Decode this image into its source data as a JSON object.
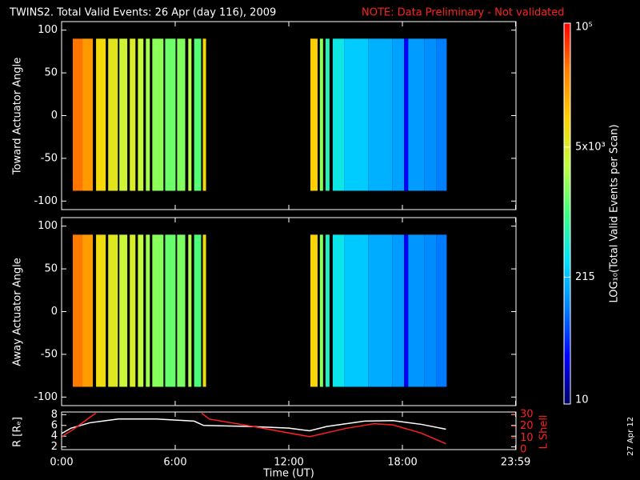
{
  "title": "TWINS2. Total Valid Events: 26 Apr (day 116), 2009",
  "note": "NOTE: Data Preliminary - Not validated",
  "stamp": "27 Apr 12",
  "colorbar": {
    "label": "LOG₁₀(Total Valid Events per Scan)",
    "log": true,
    "lim": [
      10,
      100000
    ],
    "ticks": [
      10,
      215,
      {
        "value": 5000,
        "label": "5x10³"
      },
      {
        "value": 100000,
        "label": "10⁵"
      }
    ],
    "colormap": [
      "#000066",
      "#0000ff",
      "#0080ff",
      "#00e0ff",
      "#40ff80",
      "#c0ff40",
      "#ffd000",
      "#ff8000",
      "#ff0000"
    ]
  },
  "chart_data": [
    {
      "type": "heatmap",
      "ylabel": "Toward Actuator Angle",
      "ylim": [
        -110,
        110
      ],
      "yticks": [
        -100,
        -50,
        0,
        50,
        100
      ],
      "y_range": [
        -88,
        90
      ],
      "x_start": [
        0.59,
        1.1,
        1.82,
        2.46,
        3.05,
        3.6,
        4.03,
        4.45,
        4.79,
        5.47,
        6.1,
        6.69,
        7.0,
        7.46,
        13.14,
        13.64,
        13.94,
        14.32,
        14.92,
        16.19,
        17.46,
        18.09,
        18.31,
        19.15,
        19.79
      ],
      "x_end": [
        1.1,
        1.65,
        2.33,
        2.97,
        3.47,
        3.9,
        4.32,
        4.66,
        5.38,
        6.02,
        6.53,
        6.86,
        7.37,
        7.63,
        13.52,
        13.81,
        14.15,
        14.92,
        16.19,
        17.46,
        18.09,
        18.31,
        19.15,
        19.79,
        20.34
      ],
      "values": [
        35000,
        22000,
        8000,
        6000,
        4000,
        5000,
        3500,
        2500,
        2000,
        1500,
        1800,
        3000,
        1200,
        8000,
        10000,
        2000,
        600,
        400,
        250,
        180,
        150,
        30,
        140,
        120,
        100
      ]
    },
    {
      "type": "heatmap",
      "ylabel": "Away Actuator Angle",
      "ylim": [
        -110,
        110
      ],
      "yticks": [
        -100,
        -50,
        0,
        50,
        100
      ],
      "y_range": [
        -88,
        90
      ],
      "x_start": [
        0.59,
        1.1,
        1.82,
        2.46,
        3.05,
        3.6,
        4.03,
        4.45,
        4.79,
        5.47,
        6.1,
        6.69,
        7.0,
        7.46,
        13.14,
        13.64,
        13.94,
        14.32,
        14.92,
        16.19,
        17.46,
        18.09,
        18.31,
        19.15,
        19.79
      ],
      "x_end": [
        1.1,
        1.65,
        2.33,
        2.97,
        3.47,
        3.9,
        4.32,
        4.66,
        5.38,
        6.02,
        6.53,
        6.86,
        7.37,
        7.63,
        13.52,
        13.81,
        14.15,
        14.92,
        16.19,
        17.46,
        18.09,
        18.31,
        19.15,
        19.79,
        20.34
      ],
      "values": [
        33000,
        21000,
        7500,
        5500,
        3800,
        4800,
        3300,
        2400,
        1900,
        1400,
        1700,
        2800,
        1100,
        7500,
        9000,
        1900,
        550,
        380,
        240,
        170,
        140,
        28,
        130,
        115,
        95
      ]
    },
    {
      "type": "line",
      "xlabel": "Time (UT)",
      "ylabel": "R [Rₑ]",
      "y2label": "L Shell",
      "xlim": [
        0,
        24
      ],
      "xticks": [
        {
          "value": 0,
          "label": "0:00"
        },
        {
          "value": 6,
          "label": "6:00"
        },
        {
          "value": 12,
          "label": "12:00"
        },
        {
          "value": 18,
          "label": "18:00"
        },
        {
          "value": 23.98,
          "label": "23:59"
        }
      ],
      "ylim": [
        1.5,
        8.5
      ],
      "yticks": [
        2,
        4,
        6,
        8
      ],
      "y2lim": [
        0,
        32
      ],
      "y2ticks": [
        0,
        10,
        20,
        30
      ],
      "series": [
        {
          "color": "#ffffff",
          "x": [
            0,
            0.5,
            1.5,
            3,
            5,
            7,
            7.5,
            10,
            12,
            13.1,
            14,
            16,
            17.5,
            19,
            20.3
          ],
          "values": [
            4.5,
            5.5,
            6.5,
            7.2,
            7.2,
            6.8,
            6.0,
            5.8,
            5.5,
            5.0,
            5.8,
            6.8,
            6.9,
            6.2,
            5.3
          ]
        },
        {
          "color": "#ff2020",
          "axis": "y2",
          "x": [
            0,
            0.6,
            1.2,
            1.8,
            4.5,
            7.4,
            7.8,
            10,
            13.1,
            15,
            16.5,
            17.5,
            19,
            20.3
          ],
          "values": [
            11,
            17,
            24,
            31,
            null,
            31,
            26,
            20,
            11,
            18,
            22,
            21,
            14,
            5
          ]
        }
      ]
    }
  ]
}
